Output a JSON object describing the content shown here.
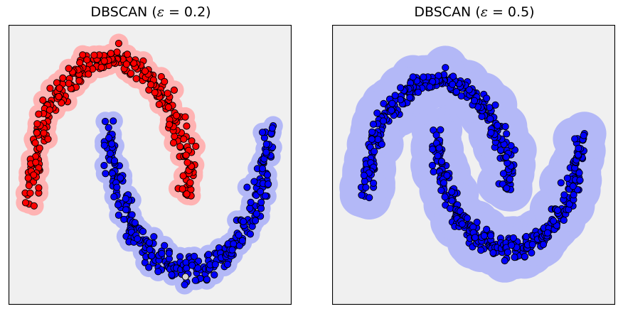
{
  "colors": {
    "background": "#f0f0f0",
    "cluster_red": "#ff0000",
    "cluster_blue": "#0000ff",
    "noise": "#d3d3d3",
    "halo_red": "#ffb3b3",
    "halo_blue": "#b3b8f7",
    "edge": "#000000"
  },
  "chart_data": [
    {
      "type": "scatter",
      "title": "DBSCAN (ε = 0.2)",
      "title_prefix": "DBSCAN (",
      "title_eps": "ε",
      "title_suffix": " = 0.2)",
      "eps": 0.2,
      "xlabel": "",
      "ylabel": "",
      "xlim": [
        -1.3,
        2.3
      ],
      "ylim": [
        -0.75,
        1.25
      ],
      "grid": false,
      "ticks": false,
      "moons": {
        "upper_arc": {
          "center": [
            0,
            0
          ],
          "radius": 1.0,
          "noise": 0.05,
          "count": 300
        },
        "lower_arc": {
          "center": [
            1,
            0.5
          ],
          "radius": 1.0,
          "noise": 0.05,
          "count": 300
        }
      },
      "series": [
        {
          "color": "#ff0000",
          "points": "upper_arc"
        },
        {
          "color": "#0000ff",
          "points": "lower_arc"
        },
        {
          "color": "#d3d3d3",
          "values": [
            [
              0.95,
              -0.55
            ]
          ]
        }
      ]
    },
    {
      "type": "scatter",
      "title": "DBSCAN (ε = 0.5)",
      "title_prefix": "DBSCAN (",
      "title_eps": "ε",
      "title_suffix": " = 0.5)",
      "eps": 0.5,
      "xlabel": "",
      "ylabel": "",
      "xlim": [
        -1.5,
        2.5
      ],
      "ylim": [
        -1.0,
        1.5
      ],
      "grid": false,
      "ticks": false,
      "moons": {
        "upper_arc": {
          "center": [
            0,
            0
          ],
          "radius": 1.0,
          "noise": 0.05,
          "count": 300
        },
        "lower_arc": {
          "center": [
            1,
            0.5
          ],
          "radius": 1.0,
          "noise": 0.05,
          "count": 300
        }
      },
      "series": [
        {
          "color": "#0000ff",
          "points": "upper_arc"
        },
        {
          "color": "#0000ff",
          "points": "lower_arc"
        }
      ]
    }
  ]
}
